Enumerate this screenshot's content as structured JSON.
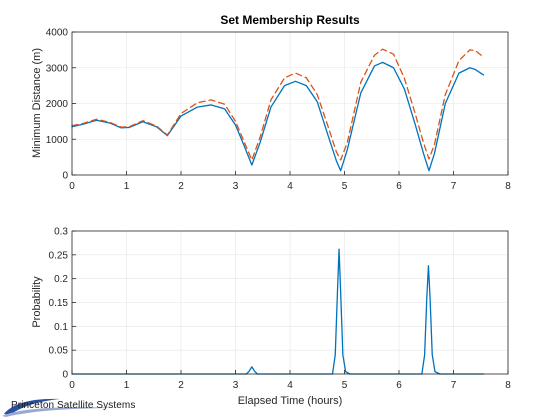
{
  "watermark": {
    "text": "Princeton Satellite Systems",
    "color": "#1a3a8a"
  },
  "colors": {
    "primary": "#0072BD",
    "secondary": "#D95319",
    "grid": "#e5e5e5",
    "axis": "#262626"
  },
  "chart_data": [
    {
      "type": "line",
      "title": "Set Membership Results",
      "xlabel": "",
      "ylabel": "Minimum Distance (m)",
      "xlim": [
        0,
        8
      ],
      "ylim": [
        0,
        4000
      ],
      "xticks": [
        0,
        1,
        2,
        3,
        4,
        5,
        6,
        7,
        8
      ],
      "yticks": [
        0,
        1000,
        2000,
        3000,
        4000
      ],
      "grid": true,
      "series": [
        {
          "style": "solid",
          "color": "#0072BD",
          "x": [
            0,
            0.2,
            0.45,
            0.7,
            0.9,
            1.05,
            1.3,
            1.55,
            1.75,
            2.0,
            2.3,
            2.55,
            2.8,
            3.0,
            3.15,
            3.3,
            3.45,
            3.65,
            3.9,
            4.1,
            4.3,
            4.5,
            4.7,
            4.85,
            4.93,
            5.05,
            5.3,
            5.55,
            5.7,
            5.9,
            6.1,
            6.3,
            6.45,
            6.55,
            6.65,
            6.85,
            7.1,
            7.3,
            7.4,
            7.55
          ],
          "y": [
            1350,
            1420,
            1530,
            1450,
            1320,
            1330,
            1490,
            1350,
            1100,
            1650,
            1900,
            1960,
            1850,
            1400,
            850,
            280,
            900,
            1900,
            2500,
            2620,
            2500,
            2050,
            1100,
            400,
            120,
            700,
            2300,
            3050,
            3150,
            3000,
            2400,
            1400,
            600,
            120,
            600,
            2000,
            2850,
            3000,
            2950,
            2800
          ]
        },
        {
          "style": "dashed",
          "color": "#D95319",
          "x": [
            0,
            0.2,
            0.45,
            0.7,
            0.9,
            1.05,
            1.3,
            1.55,
            1.75,
            2.0,
            2.3,
            2.55,
            2.8,
            3.0,
            3.15,
            3.3,
            3.45,
            3.65,
            3.9,
            4.1,
            4.3,
            4.5,
            4.7,
            4.85,
            4.93,
            5.05,
            5.3,
            5.55,
            5.7,
            5.9,
            6.1,
            6.3,
            6.45,
            6.55,
            6.65,
            6.85,
            7.1,
            7.3,
            7.4,
            7.55
          ],
          "y": [
            1380,
            1440,
            1560,
            1470,
            1340,
            1350,
            1520,
            1370,
            1120,
            1720,
            2020,
            2100,
            1980,
            1500,
            960,
            420,
            1050,
            2100,
            2720,
            2850,
            2720,
            2250,
            1350,
            650,
            420,
            900,
            2600,
            3350,
            3520,
            3380,
            2700,
            1700,
            900,
            450,
            850,
            2250,
            3200,
            3500,
            3480,
            3300
          ]
        }
      ]
    },
    {
      "type": "line",
      "title": "",
      "xlabel": "Elapsed Time (hours)",
      "ylabel": "Probability",
      "xlim": [
        0,
        8
      ],
      "ylim": [
        0,
        0.3
      ],
      "xticks": [
        0,
        1,
        2,
        3,
        4,
        5,
        6,
        7,
        8
      ],
      "yticks": [
        0,
        0.05,
        0.1,
        0.15,
        0.2,
        0.25,
        0.3
      ],
      "grid": true,
      "series": [
        {
          "style": "solid",
          "color": "#0072BD",
          "x": [
            0,
            3.2,
            3.25,
            3.3,
            3.35,
            3.4,
            4.78,
            4.83,
            4.87,
            4.9,
            4.93,
            4.97,
            5.02,
            5.1,
            6.42,
            6.47,
            6.51,
            6.54,
            6.57,
            6.61,
            6.66,
            6.75,
            7.55
          ],
          "y": [
            0,
            0,
            0.006,
            0.015,
            0.006,
            0,
            0,
            0.04,
            0.17,
            0.262,
            0.17,
            0.04,
            0.005,
            0,
            0,
            0.04,
            0.16,
            0.227,
            0.16,
            0.04,
            0.005,
            0,
            0
          ]
        }
      ]
    }
  ]
}
